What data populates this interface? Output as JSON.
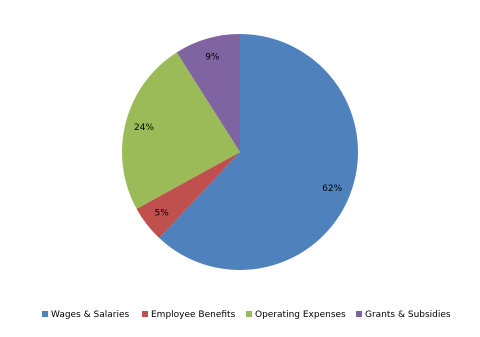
{
  "chart_data": {
    "type": "pie",
    "categories": [
      "Wages & Salaries",
      "Employee Benefits",
      "Operating Expenses",
      "Grants & Subsidies"
    ],
    "values": [
      62,
      5,
      24,
      9
    ],
    "value_labels": [
      "62%",
      "5%",
      "24%",
      "9%"
    ],
    "colors": [
      "#4f81bd",
      "#c0504d",
      "#9bbb59",
      "#8064a2"
    ],
    "legend": "bottom"
  }
}
